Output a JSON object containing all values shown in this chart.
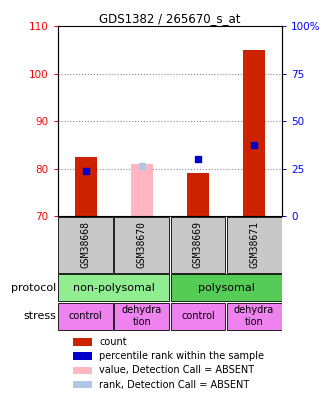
{
  "title": "GDS1382 / 265670_s_at",
  "samples": [
    "GSM38668",
    "GSM38670",
    "GSM38669",
    "GSM38671"
  ],
  "count_values": [
    82.5,
    null,
    79.0,
    105.0
  ],
  "count_bottom": [
    70.0,
    null,
    70.0,
    70.0
  ],
  "percentile_values": [
    79.5,
    null,
    82.0,
    85.0
  ],
  "absent_count_values": [
    null,
    81.0,
    null,
    null
  ],
  "absent_count_bottom": [
    null,
    70.0,
    null,
    null
  ],
  "absent_rank_values": [
    null,
    80.5,
    null,
    null
  ],
  "ylim": [
    70,
    110
  ],
  "y2lim": [
    0,
    100
  ],
  "y_ticks": [
    70,
    80,
    90,
    100,
    110
  ],
  "y2_ticks": [
    0,
    25,
    50,
    75,
    100
  ],
  "y2_labels": [
    "0",
    "25",
    "50",
    "75",
    "100%"
  ],
  "protocol_labels": [
    "non-polysomal",
    "polysomal"
  ],
  "protocol_colors": [
    "#90ee90",
    "#55cc55"
  ],
  "stress_labels": [
    "control",
    "dehydra\ntion",
    "control",
    "dehydra\ntion"
  ],
  "stress_color": "#ee82ee",
  "color_count": "#cc2200",
  "color_percentile": "#0000cc",
  "color_absent_count": "#ffb6c1",
  "color_absent_rank": "#b0c8e8",
  "bar_width": 0.4,
  "bg_color": "#ffffff",
  "grid_color": "#888888",
  "legend_items": [
    [
      "#cc2200",
      "count"
    ],
    [
      "#0000cc",
      "percentile rank within the sample"
    ],
    [
      "#ffb6c1",
      "value, Detection Call = ABSENT"
    ],
    [
      "#b0c8e8",
      "rank, Detection Call = ABSENT"
    ]
  ]
}
